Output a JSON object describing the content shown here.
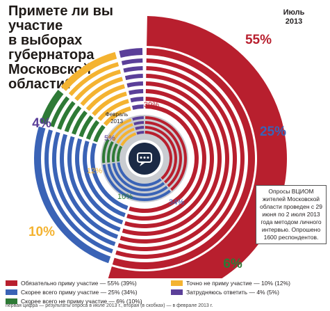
{
  "header": {
    "title_lines": [
      "Примете ли вы",
      "участие",
      "в выборах",
      "губернатора",
      "Московской",
      "области?"
    ],
    "date_lines": [
      "Июль",
      "2013"
    ]
  },
  "colors": {
    "definitely": "#b81f2e",
    "probably": "#3a63b6",
    "probably_not": "#2e7a36",
    "definitely_not": "#f4b331",
    "undecided": "#5b3f99",
    "inner_disc": "#c9ccd1",
    "center": "#1b2a45"
  },
  "chart_data": {
    "type": "pie",
    "title": "Примете ли вы участие в выборах губернатора Московской области?",
    "categories": [
      "Обязательно приму участие",
      "Скорее всего приму участие",
      "Скорее всего не приму участие",
      "Точно не приму участие",
      "Затрудняюсь ответить"
    ],
    "series": [
      {
        "name": "Июль 2013",
        "values": [
          55,
          25,
          6,
          10,
          4
        ]
      },
      {
        "name": "Февраль 2013",
        "values": [
          39,
          34,
          10,
          12,
          5
        ]
      }
    ],
    "outer_labels": [
      "55%",
      "25%",
      "6%",
      "10%",
      "4%"
    ],
    "inner_labels": [
      "39%",
      "34%",
      "10%",
      "12%",
      "5%"
    ],
    "inner_ring_label_lines": [
      "Февраль",
      "2013"
    ],
    "legend_placement": "bottom"
  },
  "note": "Опросы ВЦИОМ жителей Московской области проведен с 29 июня по 2 июля 2013 года методом личного интервью. Опрошено 1600 респондентов.",
  "legend": [
    {
      "label": "Обязательно приму участие — 55% (39%)",
      "color": "#b81f2e"
    },
    {
      "label": "Точно не приму участие — 10% (12%)",
      "color": "#f4b331"
    },
    {
      "label": "Скорее всего приму участие — 25% (34%)",
      "color": "#3a63b6"
    },
    {
      "label": "Затрудняюсь ответить — 4% (5%)",
      "color": "#5b3f99"
    },
    {
      "label": "Скорее всего не приму участие — 6% (10%)",
      "color": "#2e7a36"
    }
  ],
  "footnote": "первая цифра — результаты опроса в июле 2013 г., вторая (в скобках) — в феврале 2013 г."
}
